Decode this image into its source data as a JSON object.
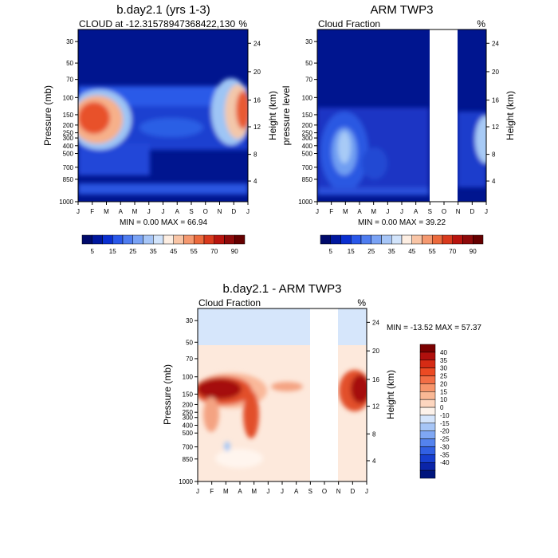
{
  "chart_data": [
    {
      "type": "heatmap",
      "title": "b.day2.1 (yrs 1-3)",
      "subtitle_left": "CLOUD at -12.31578947368422,130",
      "subtitle_right": "%",
      "ylabel": "Pressure (mb)",
      "ylabel_right": "Height (km)",
      "months": [
        "J",
        "F",
        "M",
        "A",
        "M",
        "J",
        "J",
        "A",
        "S",
        "O",
        "N",
        "D",
        "J"
      ],
      "pressure_ticks": [
        "30",
        "50",
        "70",
        "100",
        "150",
        "200",
        "250",
        "300",
        "400",
        "500",
        "700",
        "850",
        "1000"
      ],
      "height_ticks": [
        "24",
        "20",
        "16",
        "12",
        "8",
        "4"
      ],
      "minmax": "MIN =   0.00 MAX =  66.94",
      "colorbar_labels": [
        "5",
        "15",
        "25",
        "35",
        "45",
        "55",
        "70",
        "90"
      ]
    },
    {
      "type": "heatmap",
      "title": "ARM TWP3",
      "subtitle_left": "Cloud Fraction",
      "subtitle_right": "%",
      "ylabel": "pressure level",
      "ylabel_right": "Height (km)",
      "months": [
        "J",
        "F",
        "M",
        "A",
        "M",
        "J",
        "J",
        "A",
        "S",
        "O",
        "N",
        "D",
        "J"
      ],
      "pressure_ticks": [
        "30",
        "50",
        "70",
        "100",
        "150",
        "200",
        "250",
        "300",
        "400",
        "500",
        "700",
        "850",
        "1000"
      ],
      "height_ticks": [
        "24",
        "20",
        "16",
        "12",
        "8",
        "4"
      ],
      "minmax": "MIN =   0.00 MAX =  39.22",
      "colorbar_labels": [
        "5",
        "15",
        "25",
        "35",
        "45",
        "55",
        "70",
        "90"
      ]
    },
    {
      "type": "heatmap",
      "title": "b.day2.1 - ARM TWP3",
      "subtitle_left": "Cloud Fraction",
      "subtitle_right": "%",
      "ylabel": "Pressure (mb)",
      "ylabel_right": "Height (km)",
      "months": [
        "J",
        "F",
        "M",
        "A",
        "M",
        "J",
        "J",
        "A",
        "S",
        "O",
        "N",
        "D",
        "J"
      ],
      "pressure_ticks": [
        "30",
        "50",
        "70",
        "100",
        "150",
        "200",
        "250",
        "300",
        "400",
        "500",
        "700",
        "850",
        "1000"
      ],
      "height_ticks": [
        "24",
        "20",
        "16",
        "12",
        "8",
        "4"
      ],
      "minmax": "MIN = -13.52 MAX =  57.37",
      "colorbar_labels": [
        "40",
        "35",
        "30",
        "25",
        "20",
        "15",
        "10",
        "0",
        "-10",
        "-15",
        "-20",
        "-25",
        "-30",
        "-35",
        "-40"
      ]
    }
  ]
}
